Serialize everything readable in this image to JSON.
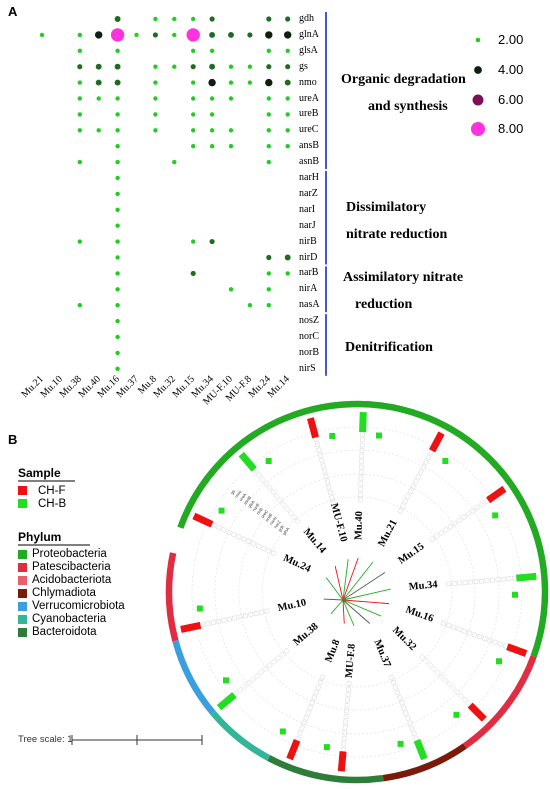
{
  "panel_a_label": "A",
  "panel_b_label": "B",
  "chart_data": [
    {
      "type": "bubble",
      "samples": [
        "Mu.21",
        "Mu.10",
        "Mu.38",
        "Mu.40",
        "Mu.16",
        "Mu.37",
        "Mu.8",
        "Mu.32",
        "Mu.15",
        "Mu.34",
        "MU-F.10",
        "MU-F.8",
        "Mu.24",
        "Mu.14"
      ],
      "genes": [
        "gdh",
        "glnA",
        "glsA",
        "gs",
        "nmo",
        "ureA",
        "ureB",
        "ureC",
        "ansB",
        "asnB",
        "narH",
        "narZ",
        "narI",
        "narJ",
        "nirB",
        "nirD",
        "narB",
        "nirA",
        "nasA",
        "nosZ",
        "norC",
        "norB",
        "nirS"
      ],
      "groups": [
        {
          "label_lines": [
            "Organic degradation",
            "and synthesis"
          ],
          "genes": [
            "gdh",
            "glnA",
            "glsA",
            "gs",
            "nmo",
            "ureA",
            "ureB",
            "ureC",
            "ansB",
            "asnB"
          ]
        },
        {
          "label_lines": [
            "Dissimilatory",
            "nitrate reduction"
          ],
          "genes": [
            "narH",
            "narZ",
            "narI",
            "narJ",
            "nirB",
            "nirD"
          ]
        },
        {
          "label_lines": [
            "Assimilatory nitrate",
            "reduction"
          ],
          "genes": [
            "narB",
            "nirA",
            "nasA"
          ]
        },
        {
          "label_lines": [
            "Denitrification"
          ],
          "genes": [
            "nosZ",
            "norC",
            "norB",
            "nirS"
          ]
        }
      ],
      "size_legend": [
        {
          "label": "2.00",
          "value": 2,
          "color": "#22cc22"
        },
        {
          "label": "4.00",
          "value": 4,
          "color": "#0f1f0f"
        },
        {
          "label": "6.00",
          "value": 6,
          "color": "#7a0f5a"
        },
        {
          "label": "8.00",
          "value": 8,
          "color": "#ff33dd"
        }
      ],
      "points": [
        {
          "gene": "gdh",
          "sample": "Mu.16",
          "value": 3
        },
        {
          "gene": "gdh",
          "sample": "Mu.8",
          "value": 2
        },
        {
          "gene": "gdh",
          "sample": "Mu.32",
          "value": 2
        },
        {
          "gene": "gdh",
          "sample": "Mu.15",
          "value": 2
        },
        {
          "gene": "gdh",
          "sample": "Mu.34",
          "value": 2.5
        },
        {
          "gene": "gdh",
          "sample": "Mu.24",
          "value": 2.5
        },
        {
          "gene": "gdh",
          "sample": "Mu.14",
          "value": 2.5
        },
        {
          "gene": "glnA",
          "sample": "Mu.21",
          "value": 2
        },
        {
          "gene": "glnA",
          "sample": "Mu.38",
          "value": 2
        },
        {
          "gene": "glnA",
          "sample": "Mu.40",
          "value": 4
        },
        {
          "gene": "glnA",
          "sample": "Mu.16",
          "value": 8
        },
        {
          "gene": "glnA",
          "sample": "Mu.37",
          "value": 2
        },
        {
          "gene": "glnA",
          "sample": "Mu.8",
          "value": 2.5
        },
        {
          "gene": "glnA",
          "sample": "Mu.32",
          "value": 2
        },
        {
          "gene": "glnA",
          "sample": "Mu.15",
          "value": 8
        },
        {
          "gene": "glnA",
          "sample": "Mu.34",
          "value": 3
        },
        {
          "gene": "glnA",
          "sample": "MU-F.10",
          "value": 3
        },
        {
          "gene": "glnA",
          "sample": "MU-F.8",
          "value": 2.5
        },
        {
          "gene": "glnA",
          "sample": "Mu.24",
          "value": 4
        },
        {
          "gene": "glnA",
          "sample": "Mu.14",
          "value": 4
        },
        {
          "gene": "glsA",
          "sample": "Mu.38",
          "value": 2
        },
        {
          "gene": "glsA",
          "sample": "Mu.16",
          "value": 2
        },
        {
          "gene": "glsA",
          "sample": "Mu.15",
          "value": 2
        },
        {
          "gene": "glsA",
          "sample": "Mu.34",
          "value": 2
        },
        {
          "gene": "glsA",
          "sample": "Mu.24",
          "value": 2
        },
        {
          "gene": "glsA",
          "sample": "Mu.14",
          "value": 2
        },
        {
          "gene": "gs",
          "sample": "Mu.38",
          "value": 2.5
        },
        {
          "gene": "gs",
          "sample": "Mu.40",
          "value": 3
        },
        {
          "gene": "gs",
          "sample": "Mu.16",
          "value": 3
        },
        {
          "gene": "gs",
          "sample": "Mu.8",
          "value": 2
        },
        {
          "gene": "gs",
          "sample": "Mu.32",
          "value": 2
        },
        {
          "gene": "gs",
          "sample": "Mu.15",
          "value": 2.5
        },
        {
          "gene": "gs",
          "sample": "Mu.34",
          "value": 3
        },
        {
          "gene": "gs",
          "sample": "MU-F.10",
          "value": 2
        },
        {
          "gene": "gs",
          "sample": "MU-F.8",
          "value": 2
        },
        {
          "gene": "gs",
          "sample": "Mu.24",
          "value": 2.5
        },
        {
          "gene": "gs",
          "sample": "Mu.14",
          "value": 2.5
        },
        {
          "gene": "nmo",
          "sample": "Mu.38",
          "value": 2
        },
        {
          "gene": "nmo",
          "sample": "Mu.40",
          "value": 3
        },
        {
          "gene": "nmo",
          "sample": "Mu.16",
          "value": 3
        },
        {
          "gene": "nmo",
          "sample": "Mu.8",
          "value": 2
        },
        {
          "gene": "nmo",
          "sample": "Mu.15",
          "value": 2
        },
        {
          "gene": "nmo",
          "sample": "Mu.34",
          "value": 4
        },
        {
          "gene": "nmo",
          "sample": "MU-F.10",
          "value": 2
        },
        {
          "gene": "nmo",
          "sample": "MU-F.8",
          "value": 2
        },
        {
          "gene": "nmo",
          "sample": "Mu.24",
          "value": 4
        },
        {
          "gene": "nmo",
          "sample": "Mu.14",
          "value": 3
        },
        {
          "gene": "ureA",
          "sample": "Mu.38",
          "value": 2
        },
        {
          "gene": "ureA",
          "sample": "Mu.40",
          "value": 2
        },
        {
          "gene": "ureA",
          "sample": "Mu.16",
          "value": 2
        },
        {
          "gene": "ureA",
          "sample": "Mu.8",
          "value": 2
        },
        {
          "gene": "ureA",
          "sample": "Mu.15",
          "value": 2
        },
        {
          "gene": "ureA",
          "sample": "Mu.34",
          "value": 2
        },
        {
          "gene": "ureA",
          "sample": "MU-F.10",
          "value": 2
        },
        {
          "gene": "ureA",
          "sample": "Mu.24",
          "value": 2
        },
        {
          "gene": "ureA",
          "sample": "Mu.14",
          "value": 2
        },
        {
          "gene": "ureB",
          "sample": "Mu.38",
          "value": 2
        },
        {
          "gene": "ureB",
          "sample": "Mu.16",
          "value": 2
        },
        {
          "gene": "ureB",
          "sample": "Mu.8",
          "value": 2
        },
        {
          "gene": "ureB",
          "sample": "Mu.15",
          "value": 2
        },
        {
          "gene": "ureB",
          "sample": "Mu.34",
          "value": 2
        },
        {
          "gene": "ureB",
          "sample": "Mu.24",
          "value": 2
        },
        {
          "gene": "ureB",
          "sample": "Mu.14",
          "value": 2
        },
        {
          "gene": "ureC",
          "sample": "Mu.38",
          "value": 2
        },
        {
          "gene": "ureC",
          "sample": "Mu.40",
          "value": 2
        },
        {
          "gene": "ureC",
          "sample": "Mu.16",
          "value": 2
        },
        {
          "gene": "ureC",
          "sample": "Mu.8",
          "value": 2
        },
        {
          "gene": "ureC",
          "sample": "Mu.15",
          "value": 2
        },
        {
          "gene": "ureC",
          "sample": "Mu.34",
          "value": 2
        },
        {
          "gene": "ureC",
          "sample": "MU-F.10",
          "value": 2
        },
        {
          "gene": "ureC",
          "sample": "Mu.24",
          "value": 2
        },
        {
          "gene": "ureC",
          "sample": "Mu.14",
          "value": 2
        },
        {
          "gene": "ansB",
          "sample": "Mu.16",
          "value": 2
        },
        {
          "gene": "ansB",
          "sample": "Mu.15",
          "value": 2
        },
        {
          "gene": "ansB",
          "sample": "Mu.34",
          "value": 2
        },
        {
          "gene": "ansB",
          "sample": "MU-F.10",
          "value": 2
        },
        {
          "gene": "ansB",
          "sample": "Mu.24",
          "value": 2
        },
        {
          "gene": "ansB",
          "sample": "Mu.14",
          "value": 2
        },
        {
          "gene": "asnB",
          "sample": "Mu.38",
          "value": 2
        },
        {
          "gene": "asnB",
          "sample": "Mu.16",
          "value": 2
        },
        {
          "gene": "asnB",
          "sample": "Mu.32",
          "value": 2
        },
        {
          "gene": "asnB",
          "sample": "Mu.24",
          "value": 2
        },
        {
          "gene": "narH",
          "sample": "Mu.16",
          "value": 2
        },
        {
          "gene": "narZ",
          "sample": "Mu.16",
          "value": 2
        },
        {
          "gene": "narI",
          "sample": "Mu.16",
          "value": 2
        },
        {
          "gene": "narJ",
          "sample": "Mu.16",
          "value": 2
        },
        {
          "gene": "nirB",
          "sample": "Mu.38",
          "value": 2
        },
        {
          "gene": "nirB",
          "sample": "Mu.16",
          "value": 2
        },
        {
          "gene": "nirB",
          "sample": "Mu.15",
          "value": 2
        },
        {
          "gene": "nirB",
          "sample": "Mu.34",
          "value": 2.5
        },
        {
          "gene": "nirD",
          "sample": "Mu.16",
          "value": 2
        },
        {
          "gene": "nirD",
          "sample": "Mu.24",
          "value": 2.5
        },
        {
          "gene": "nirD",
          "sample": "Mu.14",
          "value": 3
        },
        {
          "gene": "narB",
          "sample": "Mu.16",
          "value": 2
        },
        {
          "gene": "narB",
          "sample": "Mu.15",
          "value": 2.5
        },
        {
          "gene": "narB",
          "sample": "Mu.24",
          "value": 2
        },
        {
          "gene": "narB",
          "sample": "Mu.14",
          "value": 2
        },
        {
          "gene": "nirA",
          "sample": "Mu.16",
          "value": 2
        },
        {
          "gene": "nirA",
          "sample": "MU-F.10",
          "value": 2
        },
        {
          "gene": "nirA",
          "sample": "Mu.24",
          "value": 2
        },
        {
          "gene": "nasA",
          "sample": "Mu.38",
          "value": 2
        },
        {
          "gene": "nasA",
          "sample": "Mu.16",
          "value": 2
        },
        {
          "gene": "nasA",
          "sample": "MU-F.8",
          "value": 2
        },
        {
          "gene": "nasA",
          "sample": "Mu.24",
          "value": 2
        },
        {
          "gene": "nosZ",
          "sample": "Mu.16",
          "value": 2
        },
        {
          "gene": "norC",
          "sample": "Mu.16",
          "value": 2
        },
        {
          "gene": "norB",
          "sample": "Mu.16",
          "value": 2
        },
        {
          "gene": "nirS",
          "sample": "Mu.16",
          "value": 2
        }
      ]
    },
    {
      "type": "circular-tree",
      "tree_scale": "Tree scale: 1",
      "legend": {
        "sample_title": "Sample",
        "samples": [
          {
            "label": "CH-F",
            "color": "#ee1111"
          },
          {
            "label": "CH-B",
            "color": "#22dd22"
          }
        ],
        "phylum_title": "Phylum",
        "phyla": [
          {
            "label": "Proteobacteria",
            "color": "#22aa22"
          },
          {
            "label": "Patescibacteria",
            "color": "#e02d43"
          },
          {
            "label": "Acidobacteriota",
            "color": "#e8606a"
          },
          {
            "label": "Chlymadiota",
            "color": "#7a1a0a"
          },
          {
            "label": "Verrucomicrobiota",
            "color": "#3aa0dd"
          },
          {
            "label": "Cyanobacteria",
            "color": "#33b59a"
          },
          {
            "label": "Bacteroidota",
            "color": "#2e7d3a"
          }
        ]
      },
      "leaves": [
        {
          "name": "Mu.40",
          "angle": -88
        },
        {
          "name": "Mu.21",
          "angle": -62
        },
        {
          "name": "Mu.15",
          "angle": -35
        },
        {
          "name": "Mu.34",
          "angle": -5
        },
        {
          "name": "Mu.16",
          "angle": 20
        },
        {
          "name": "Mu.32",
          "angle": 45
        },
        {
          "name": "Mu.37",
          "angle": 68
        },
        {
          "name": "MU-F.8",
          "angle": 95
        },
        {
          "name": "Mu.8",
          "angle": 112
        },
        {
          "name": "Mu.38",
          "angle": 140
        },
        {
          "name": "Mu.10",
          "angle": 168
        },
        {
          "name": "Mu.24",
          "angle": -155
        },
        {
          "name": "Mu.14",
          "angle": -130
        },
        {
          "name": "MU-F.10",
          "angle": -105
        }
      ],
      "track_labels": [
        "glnA",
        "gdh",
        "narZ",
        "narH",
        "ureB",
        "ureC",
        "nirB",
        "narB",
        "glsA",
        "asnB",
        "ureA",
        "nmo",
        "gs"
      ]
    }
  ]
}
